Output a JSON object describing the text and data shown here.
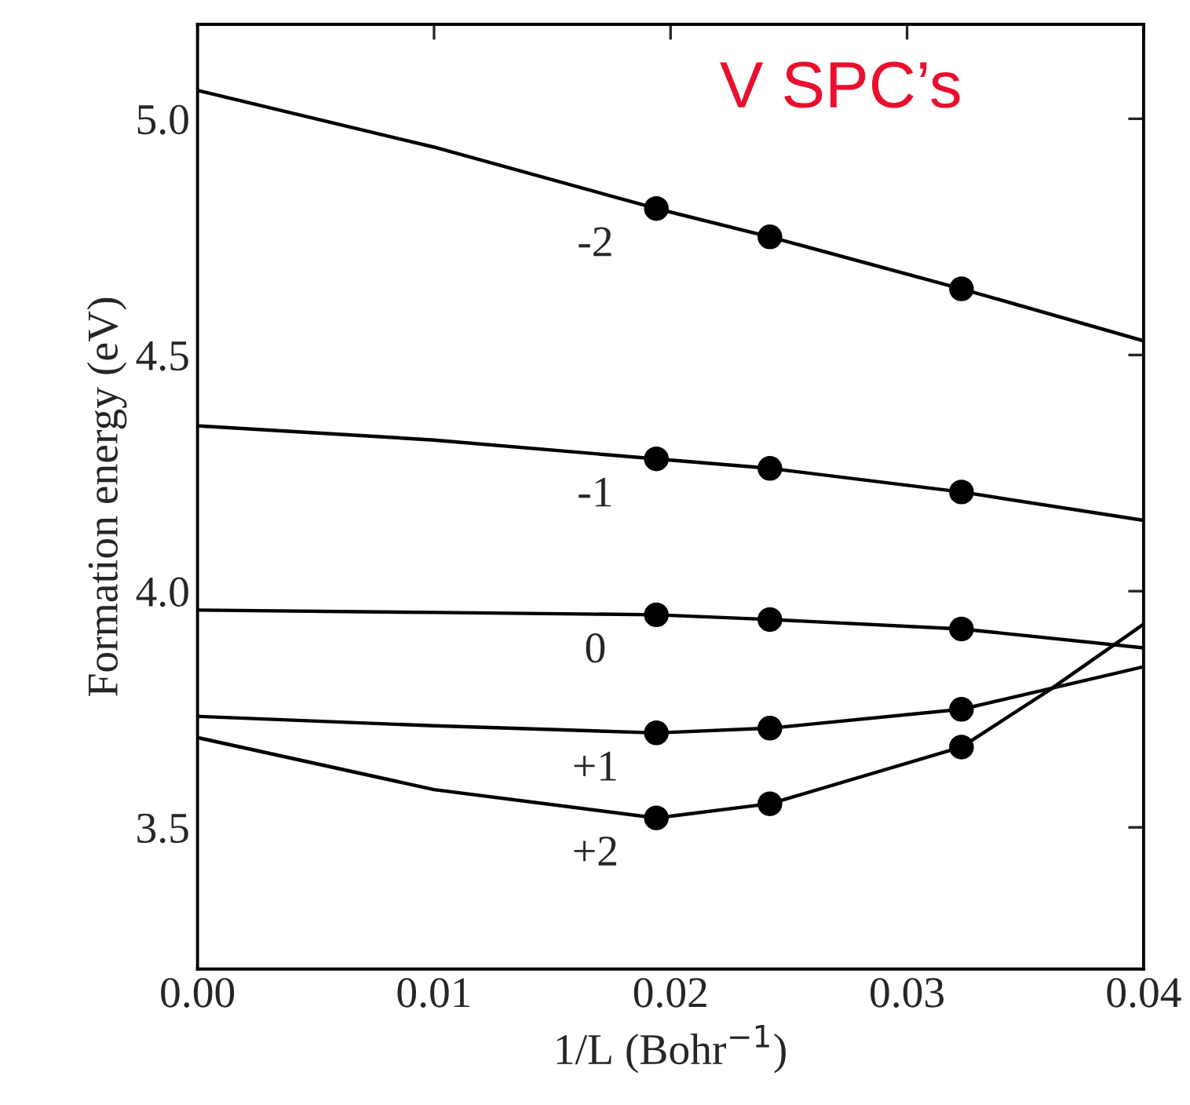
{
  "chart_data": {
    "type": "line",
    "title": "V SPC’s",
    "xlabel": "1/L (Bohr$^{−1}$)",
    "ylabel": "Formation energy (eV)",
    "xlim": [
      0,
      0.04
    ],
    "ylim": [
      3.2,
      5.2
    ],
    "xticks": [
      {
        "value": 0,
        "label": "0.00"
      },
      {
        "value": 0.01,
        "label": "0.01"
      },
      {
        "value": 0.02,
        "label": "0.02"
      },
      {
        "value": 0.03,
        "label": "0.03"
      },
      {
        "value": 0.04,
        "label": "0.04"
      }
    ],
    "yticks": [
      {
        "value": 3.5,
        "label": "3.5"
      },
      {
        "value": 4.0,
        "label": "4.0"
      },
      {
        "value": 4.5,
        "label": "4.5"
      },
      {
        "value": 5.0,
        "label": "5.0"
      }
    ],
    "grid": false,
    "legend": false,
    "series": [
      {
        "name": "-2",
        "color": "#000000",
        "marker": "none",
        "x": [
          0,
          0.01,
          0.0194,
          0.0242,
          0.0323,
          0.04
        ],
        "values": [
          5.06,
          4.94,
          4.81,
          4.75,
          4.64,
          4.53
        ]
      },
      {
        "name": "-1",
        "color": "#000000",
        "marker": "none",
        "x": [
          0,
          0.01,
          0.0194,
          0.0242,
          0.0323,
          0.04
        ],
        "values": [
          4.35,
          4.32,
          4.28,
          4.26,
          4.21,
          4.15
        ]
      },
      {
        "name": "0",
        "color": "#000000",
        "marker": "none",
        "x": [
          0,
          0.01,
          0.0194,
          0.0242,
          0.0323,
          0.04
        ],
        "values": [
          3.96,
          3.955,
          3.95,
          3.94,
          3.92,
          3.88
        ]
      },
      {
        "name": "+1",
        "color": "#000000",
        "marker": "none",
        "x": [
          0,
          0.01,
          0.0194,
          0.0242,
          0.0323,
          0.04
        ],
        "values": [
          3.735,
          3.715,
          3.7,
          3.71,
          3.75,
          3.84
        ]
      },
      {
        "name": "+2",
        "color": "#000000",
        "marker": "none",
        "x": [
          0,
          0.01,
          0.0194,
          0.0242,
          0.0323,
          0.036,
          0.04
        ],
        "values": [
          3.69,
          3.58,
          3.52,
          3.55,
          3.67,
          3.79,
          3.93
        ]
      },
      {
        "type": "scatter",
        "color": "#000000",
        "marker": "circle",
        "x": [
          0.0194,
          0.0242,
          0.0323
        ],
        "values": [
          4.81,
          4.75,
          4.64
        ]
      },
      {
        "type": "scatter",
        "color": "#000000",
        "marker": "circle",
        "x": [
          0.0194,
          0.0242,
          0.0323
        ],
        "values": [
          4.28,
          4.26,
          4.21
        ]
      },
      {
        "type": "scatter",
        "color": "#000000",
        "marker": "circle",
        "x": [
          0.0194,
          0.0242,
          0.0323
        ],
        "values": [
          3.95,
          3.94,
          3.92
        ]
      },
      {
        "type": "scatter",
        "color": "#000000",
        "marker": "circle",
        "x": [
          0.0194,
          0.0242,
          0.0323
        ],
        "values": [
          3.7,
          3.71,
          3.75
        ]
      },
      {
        "type": "scatter",
        "color": "#000000",
        "marker": "circle",
        "x": [
          0.0194,
          0.0242,
          0.0323
        ],
        "values": [
          3.52,
          3.55,
          3.67
        ]
      }
    ]
  }
}
